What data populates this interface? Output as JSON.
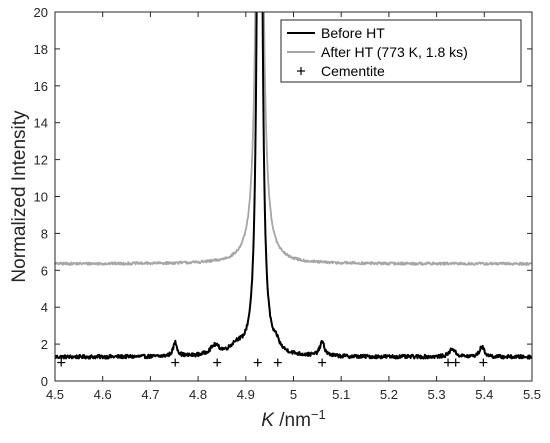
{
  "chart_data": {
    "type": "line",
    "xlabel_italic": "K",
    "xlabel_unit": " /nm",
    "xlabel_exp": "−1",
    "ylabel": "Normalized Intensity",
    "xlim": [
      4.5,
      5.5
    ],
    "ylim": [
      0,
      20
    ],
    "x_ticks": [
      4.5,
      4.6,
      4.7,
      4.8,
      4.9,
      5.0,
      5.1,
      5.2,
      5.3,
      5.4,
      5.5
    ],
    "x_tick_labels": [
      "4.5",
      "4.6",
      "4.7",
      "4.8",
      "4.9",
      "5",
      "5.1",
      "5.2",
      "5.3",
      "5.4",
      "5.5"
    ],
    "y_ticks": [
      0,
      2,
      4,
      6,
      8,
      10,
      12,
      14,
      16,
      18,
      20
    ],
    "y_tick_labels": [
      "0",
      "2",
      "4",
      "6",
      "8",
      "10",
      "12",
      "14",
      "16",
      "18",
      "20"
    ],
    "grid": false,
    "legend_position": "top-right",
    "series": [
      {
        "name": "Before HT",
        "color": "#000000",
        "baseline": 1.3,
        "noise": 0.1,
        "peaks": [
          {
            "x": 4.752,
            "height": 0.75,
            "width": 0.005
          },
          {
            "x": 4.835,
            "height": 0.5,
            "width": 0.012
          },
          {
            "x": 4.88,
            "height": 0.45,
            "width": 0.015
          },
          {
            "x": 4.929,
            "height": 55,
            "width": 0.0045
          },
          {
            "x": 4.965,
            "height": 0.35,
            "width": 0.006
          },
          {
            "x": 5.06,
            "height": 0.75,
            "width": 0.006
          },
          {
            "x": 5.333,
            "height": 0.45,
            "width": 0.007
          },
          {
            "x": 5.395,
            "height": 0.55,
            "width": 0.006
          }
        ]
      },
      {
        "name": "After HT (773 K, 1.8 ks)",
        "color": "#a6a6a6",
        "baseline": 6.35,
        "noise": 0.07,
        "peaks": [
          {
            "x": 4.929,
            "height": 45,
            "width": 0.006
          }
        ]
      }
    ],
    "markers": {
      "name": "Cementite",
      "symbol": "+",
      "color": "#000000",
      "y": 1.0,
      "x": [
        4.513,
        4.752,
        4.84,
        4.925,
        4.967,
        5.06,
        5.324,
        5.34,
        5.398
      ]
    }
  }
}
